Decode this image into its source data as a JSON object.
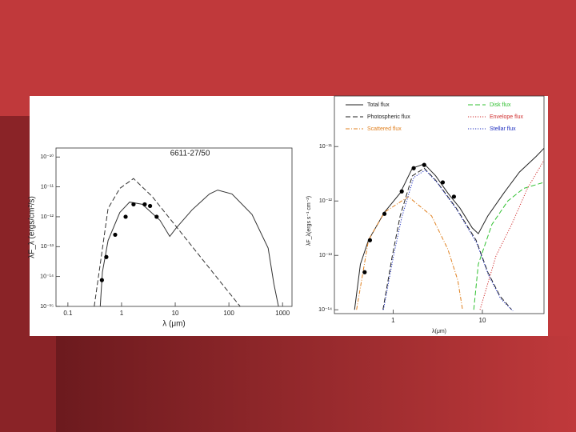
{
  "chart_data": [
    {
      "type": "line",
      "title": "6611-27/50",
      "x_label": "λ (μm)",
      "y_label": "λF_λ (ergs/cm²/s)",
      "xscale": "log",
      "yscale": "log",
      "xlim": [
        0.06,
        1500
      ],
      "ylim": [
        1e-15,
        2e-10
      ],
      "xticks": [
        0.1,
        1,
        10,
        100,
        1000
      ],
      "yticks": [
        {
          "value": 1e-10,
          "label": "10⁻¹⁰"
        },
        {
          "value": 1e-11,
          "label": "10⁻¹¹"
        },
        {
          "value": 1e-12,
          "label": "10⁻¹²"
        },
        {
          "value": 1e-13,
          "label": "10⁻¹³"
        },
        {
          "value": 1e-14,
          "label": "10⁻¹⁴"
        },
        {
          "value": 1e-15,
          "label": "10⁻¹⁵"
        }
      ],
      "series": [
        {
          "color": "#333333",
          "style": "solid",
          "x": [
            0.4,
            0.44,
            0.56,
            0.93,
            1.41,
            2.44,
            5.2,
            7.9,
            10.3,
            20.6,
            43.6,
            61.8,
            114,
            270,
            540,
            690,
            840
          ],
          "values": [
            1e-15,
            1.4e-14,
            1.6e-13,
            1.4e-12,
            3.1e-12,
            2.6e-12,
            7.6e-13,
            2.2e-13,
            4.1e-13,
            1.7e-12,
            5.8e-12,
            7.8e-12,
            5.8e-12,
            1.2e-12,
            8.9e-14,
            5.6e-15,
            1e-15
          ]
        },
        {
          "color": "#333333",
          "style": "dashed",
          "x": [
            0.31,
            0.4,
            0.56,
            0.93,
            1.67,
            3.7,
            14.6,
            57.8,
            162
          ],
          "values": [
            1e-15,
            2.6e-14,
            1.9e-12,
            8.9e-12,
            1.9e-11,
            4.8e-12,
            2.2e-13,
            1e-14,
            1e-15
          ]
        }
      ],
      "points": {
        "color": "#000000",
        "x": [
          0.43,
          0.52,
          0.76,
          1.19,
          1.67,
          2.7,
          3.4,
          4.5
        ],
        "values": [
          7.6e-15,
          4.5e-14,
          2.5e-13,
          1e-12,
          2.6e-12,
          2.6e-12,
          2.3e-12,
          1e-12
        ]
      }
    },
    {
      "type": "line",
      "x_label": "λ(μm)",
      "y_label": "λF_λ(ergs s⁻¹ cm⁻²)",
      "xscale": "log",
      "yscale": "log",
      "xlim": [
        0.22,
        49
      ],
      "ylim": [
        8.5e-15,
        8.5e-11
      ],
      "xticks": [
        1,
        10
      ],
      "yticks": [
        {
          "value": 1e-11,
          "label": "10⁻¹¹"
        },
        {
          "value": 1e-12,
          "label": "10⁻¹²"
        },
        {
          "value": 1e-13,
          "label": "10⁻¹³"
        },
        {
          "value": 1e-14,
          "label": "10⁻¹⁴"
        }
      ],
      "series": [
        {
          "name": "Total flux",
          "color": "#222222",
          "style": "solid",
          "x": [
            0.37,
            0.43,
            0.53,
            0.8,
            1.2,
            1.64,
            2.23,
            3.0,
            4.1,
            5.6,
            7.7,
            9.0,
            11.5,
            17.4,
            26,
            40,
            49
          ],
          "values": [
            1e-14,
            6.9e-14,
            1.9e-13,
            6.2e-13,
            1.4e-12,
            4e-12,
            4.8e-12,
            2.9e-12,
            1.4e-12,
            7.4e-13,
            3.2e-13,
            2.5e-13,
            5.3e-13,
            1.4e-12,
            3.4e-12,
            6.6e-12,
            9.3e-12
          ]
        },
        {
          "name": "Photospheric flux",
          "color": "#222222",
          "style": "dashed",
          "x": [
            0.77,
            0.98,
            1.2,
            1.64,
            2.23,
            3.0,
            5.1,
            8.5,
            11.5,
            15.7,
            21.3
          ],
          "values": [
            1e-14,
            9.8e-14,
            5.3e-13,
            2.9e-12,
            4e-12,
            2.4e-12,
            7.4e-13,
            1.9e-13,
            4.9e-14,
            1.8e-14,
            1e-14
          ]
        },
        {
          "name": "Scattered flux",
          "color": "#e08020",
          "style": "dashdot",
          "x": [
            0.39,
            0.53,
            0.8,
            1.48,
            2.7,
            4.1,
            5.3,
            6.0
          ],
          "values": [
            1e-14,
            1.9e-13,
            6.2e-13,
            1.2e-12,
            5.3e-13,
            1.3e-13,
            3.5e-14,
            1e-14
          ]
        },
        {
          "name": "Disk flux",
          "color": "#30c030",
          "style": "dashed",
          "x": [
            8.0,
            9.0,
            12.8,
            19.3,
            29,
            49
          ],
          "values": [
            1e-14,
            6.9e-14,
            3.7e-13,
            1e-12,
            1.7e-12,
            2.2e-12
          ]
        },
        {
          "name": "Envelope flux",
          "color": "#d03030",
          "style": "dotted",
          "x": [
            9.4,
            14.2,
            21.3,
            32,
            49
          ],
          "values": [
            1e-14,
            9.8e-14,
            3.7e-13,
            1.7e-12,
            5.6e-12
          ]
        },
        {
          "name": "Stellar flux",
          "color": "#2030c0",
          "style": "dotted",
          "x": [
            0.78,
            1.0,
            1.25,
            1.7,
            2.3,
            3.1,
            5.2,
            8.6,
            11.6,
            16,
            22
          ],
          "values": [
            1e-14,
            9e-14,
            5e-13,
            2.7e-12,
            3.7e-12,
            2.2e-12,
            6.8e-13,
            1.7e-13,
            4.5e-14,
            1.6e-14,
            9.5e-15
          ]
        }
      ],
      "points": {
        "color": "#000000",
        "x": [
          0.48,
          0.55,
          0.8,
          1.25,
          1.7,
          2.23,
          3.6,
          4.8
        ],
        "values": [
          4.9e-14,
          1.9e-13,
          5.8e-13,
          1.5e-12,
          4e-12,
          4.6e-12,
          2.2e-12,
          1.2e-12
        ]
      }
    }
  ]
}
